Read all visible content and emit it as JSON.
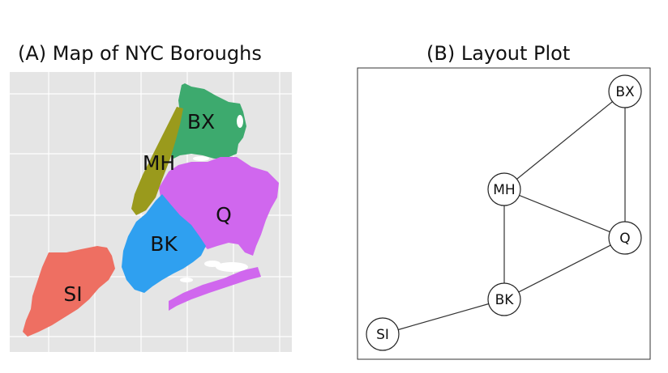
{
  "panel_a": {
    "title": "(A) Map of NYC Boroughs",
    "boroughs": [
      {
        "id": "BX",
        "label": "BX",
        "color": "#3daa6e"
      },
      {
        "id": "MH",
        "label": "MH",
        "color": "#9a9a1c"
      },
      {
        "id": "Q",
        "label": "Q",
        "color": "#d067ee"
      },
      {
        "id": "BK",
        "label": "BK",
        "color": "#2fa0f0"
      },
      {
        "id": "SI",
        "label": "SI",
        "color": "#ee6f62"
      }
    ],
    "background": "#e5e5e5"
  },
  "panel_b": {
    "title": "(B) Layout Plot",
    "nodes": [
      {
        "id": "BX",
        "label": "BX"
      },
      {
        "id": "MH",
        "label": "MH"
      },
      {
        "id": "Q",
        "label": "Q"
      },
      {
        "id": "BK",
        "label": "BK"
      },
      {
        "id": "SI",
        "label": "SI"
      }
    ],
    "edges": [
      [
        "BX",
        "MH"
      ],
      [
        "BX",
        "Q"
      ],
      [
        "MH",
        "Q"
      ],
      [
        "MH",
        "BK"
      ],
      [
        "Q",
        "BK"
      ],
      [
        "BK",
        "SI"
      ]
    ]
  }
}
